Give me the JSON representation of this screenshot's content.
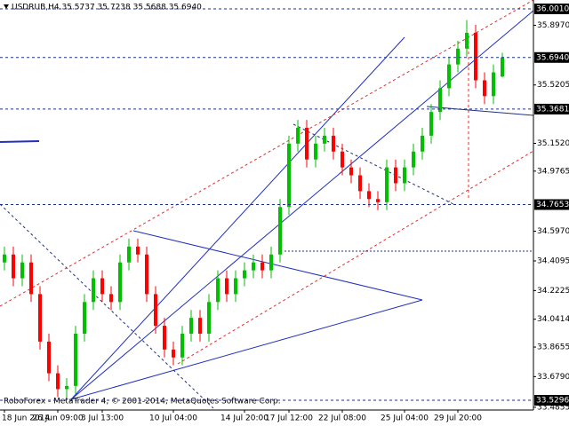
{
  "chart_data": {
    "type": "candlestick",
    "title": "USDRUB,H4 35.5737 35.7238 35.5688 35.6940",
    "footer": "RoboForex - MetaTrader 4, © 2001-2014, MetaQuotes Software Corp.",
    "categories": [
      "18 Jun 2014",
      null,
      null,
      null,
      null,
      null,
      "26 Jun 09:00",
      null,
      null,
      null,
      null,
      "3 Jul 13:00",
      null,
      null,
      null,
      null,
      null,
      null,
      null,
      "10 Jul 04:00",
      null,
      null,
      null,
      null,
      null,
      null,
      null,
      "14 Jul 20:00",
      null,
      null,
      null,
      null,
      "17 Jul 12:00",
      null,
      null,
      null,
      null,
      null,
      "22 Jul 08:00",
      null,
      null,
      null,
      null,
      null,
      null,
      "25 Jul 04:00",
      null,
      null,
      null,
      null,
      null,
      "29 Jul 20:00",
      null,
      null,
      null,
      null,
      null
    ],
    "open": [
      34.4,
      34.45,
      34.3,
      34.4,
      34.2,
      33.9,
      33.7,
      33.6,
      33.62,
      33.95,
      34.15,
      34.3,
      34.2,
      34.15,
      34.4,
      34.5,
      34.45,
      34.2,
      34.0,
      33.85,
      33.8,
      33.95,
      34.05,
      33.95,
      34.15,
      34.3,
      34.2,
      34.3,
      34.35,
      34.4,
      34.35,
      34.45,
      34.75,
      35.15,
      35.25,
      35.05,
      35.15,
      35.2,
      35.1,
      35.0,
      34.95,
      34.85,
      34.8,
      34.78,
      35.0,
      34.9,
      35.0,
      35.1,
      35.2,
      35.35,
      35.5,
      35.65,
      35.75,
      35.85,
      35.55,
      35.45,
      35.5737
    ],
    "high": [
      34.5,
      34.5,
      34.45,
      34.45,
      34.25,
      33.95,
      33.75,
      33.67,
      34.0,
      34.2,
      34.35,
      34.35,
      34.25,
      34.45,
      34.55,
      34.55,
      34.5,
      34.25,
      34.05,
      33.9,
      34.0,
      34.1,
      34.1,
      34.2,
      34.35,
      34.35,
      34.35,
      34.4,
      34.45,
      34.45,
      34.5,
      34.8,
      35.2,
      35.3,
      35.3,
      35.2,
      35.25,
      35.25,
      35.15,
      35.05,
      35.0,
      34.9,
      34.85,
      35.05,
      35.05,
      35.05,
      35.15,
      35.25,
      35.4,
      35.55,
      35.7,
      35.8,
      35.93,
      35.9,
      35.6,
      35.65,
      35.7238
    ],
    "low": [
      34.35,
      34.25,
      34.25,
      34.15,
      33.85,
      33.65,
      33.55,
      33.53,
      33.57,
      33.9,
      34.1,
      34.15,
      34.1,
      34.1,
      34.35,
      34.4,
      34.15,
      33.95,
      33.8,
      33.75,
      33.75,
      33.9,
      33.9,
      33.9,
      34.1,
      34.15,
      34.15,
      34.25,
      34.3,
      34.3,
      34.3,
      34.4,
      34.7,
      35.1,
      35.0,
      35.0,
      35.1,
      35.05,
      34.95,
      34.9,
      34.8,
      34.75,
      34.73,
      34.73,
      34.85,
      34.85,
      34.95,
      35.05,
      35.15,
      35.3,
      35.45,
      35.6,
      35.7,
      35.5,
      35.4,
      35.4,
      35.5688
    ],
    "close": [
      34.45,
      34.3,
      34.4,
      34.2,
      33.9,
      33.7,
      33.6,
      33.62,
      33.95,
      34.15,
      34.3,
      34.2,
      34.15,
      34.4,
      34.5,
      34.45,
      34.2,
      34.0,
      33.85,
      33.8,
      33.95,
      34.05,
      33.95,
      34.15,
      34.3,
      34.2,
      34.3,
      34.35,
      34.4,
      34.35,
      34.45,
      34.75,
      35.15,
      35.25,
      35.05,
      35.15,
      35.2,
      35.1,
      35.0,
      34.95,
      34.85,
      34.8,
      34.78,
      35.0,
      34.9,
      35.0,
      35.1,
      35.2,
      35.35,
      35.5,
      35.65,
      35.75,
      35.85,
      35.55,
      35.45,
      35.6,
      35.694
    ],
    "up_color": "#00c000",
    "down_color": "#ff0000",
    "ylim": [
      33.468,
      36.057
    ],
    "yticks": [
      {
        "value": 35.897,
        "label": "35.8970"
      },
      35.5205,
      {
        "value": 35.152,
        "label": "35.1520"
      },
      34.9765,
      {
        "value": 34.597,
        "label": "34.5970"
      },
      34.4095,
      34.2225,
      34.0414,
      33.8655,
      {
        "value": 33.679,
        "label": "33.6790"
      },
      33.4855
    ],
    "levels": [
      {
        "value": 36.001,
        "label": "36.0010"
      },
      {
        "value": 35.694,
        "label": "35.6940"
      },
      35.3681,
      34.7653,
      33.5296
    ]
  }
}
